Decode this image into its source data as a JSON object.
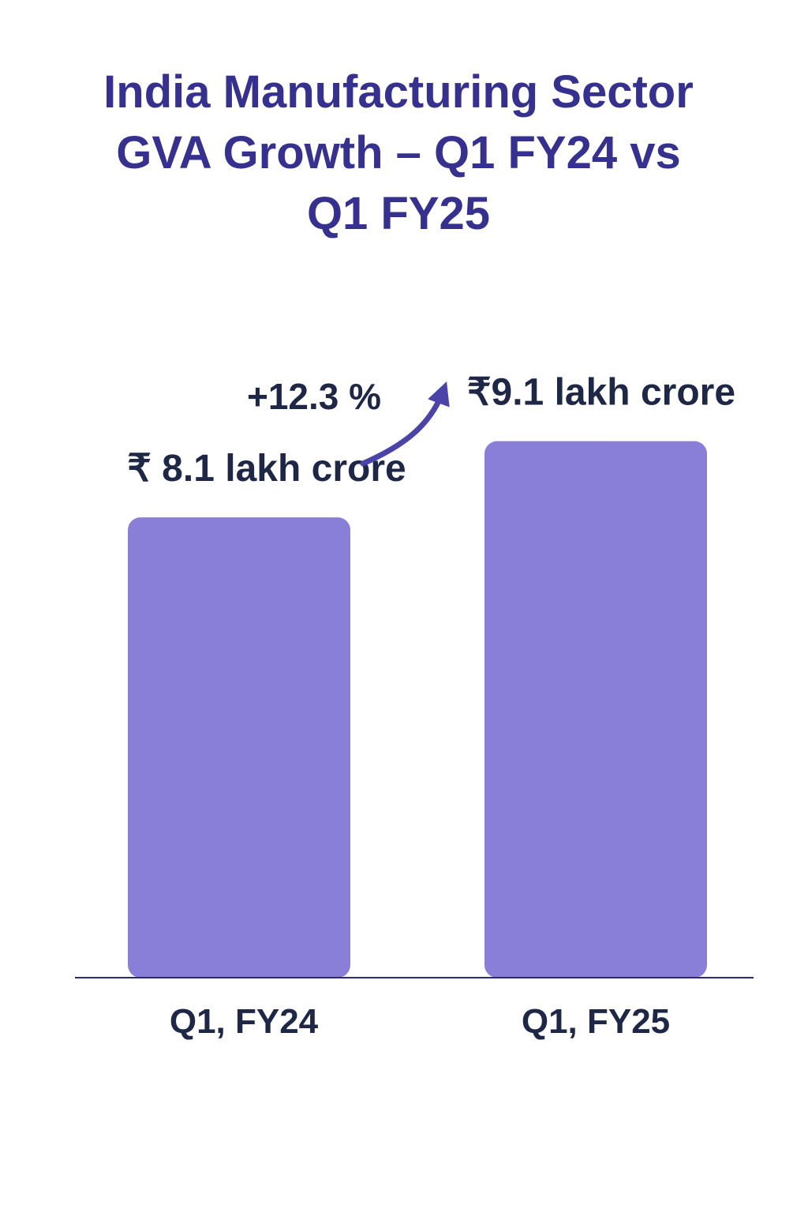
{
  "chart_data": {
    "type": "bar",
    "title_lines": [
      "India Manufacturing Sector",
      "GVA Growth – Q1 FY24 vs",
      "Q1 FY25"
    ],
    "categories": [
      "Q1, FY24",
      "Q1, FY25"
    ],
    "values": [
      8.1,
      9.1
    ],
    "value_labels": [
      "₹ 8.1 lakh crore",
      "₹9.1 lakh crore"
    ],
    "annotation": "+12.3 %",
    "xlabel": "",
    "ylabel": "",
    "grid": false,
    "legend": "none",
    "colors": {
      "bar": "#8a7fd8",
      "title": "#36318f",
      "text": "#1f2747",
      "baseline": "#2c2a72",
      "arrow": "#4a43a8"
    }
  }
}
